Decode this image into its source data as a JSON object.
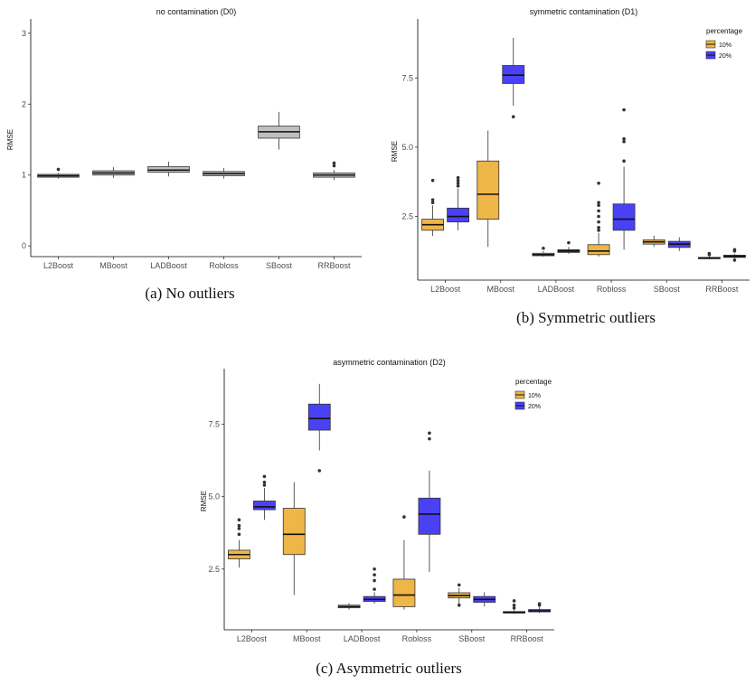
{
  "chart_data": [
    {
      "id": "a",
      "type": "boxplot",
      "title": "no contamination (D0)",
      "ylabel": "RMSE",
      "caption": "(a)  No outliers",
      "ylim": [
        -0.15,
        3.15
      ],
      "yticks": [
        {
          "v": 0,
          "label": "0"
        },
        {
          "v": 1,
          "label": "1"
        },
        {
          "v": 2,
          "label": "2"
        },
        {
          "v": 3,
          "label": "3"
        }
      ],
      "categories": [
        "L2Boost",
        "MBoost",
        "LADBoost",
        "Robloss",
        "SBoost",
        "RRBoost"
      ],
      "legend": null,
      "series": [
        {
          "color": "#bebebe",
          "boxes": [
            {
              "lw": 0.95,
              "q1": 0.97,
              "med": 0.99,
              "q3": 1.01,
              "hw": 1.03,
              "out": [
                1.08
              ]
            },
            {
              "lw": 0.96,
              "q1": 1.0,
              "med": 1.03,
              "q3": 1.06,
              "hw": 1.11,
              "out": []
            },
            {
              "lw": 0.98,
              "q1": 1.04,
              "med": 1.07,
              "q3": 1.12,
              "hw": 1.19,
              "out": []
            },
            {
              "lw": 0.95,
              "q1": 0.99,
              "med": 1.02,
              "q3": 1.05,
              "hw": 1.1,
              "out": []
            },
            {
              "lw": 1.36,
              "q1": 1.52,
              "med": 1.61,
              "q3": 1.69,
              "hw": 1.89,
              "out": []
            },
            {
              "lw": 0.93,
              "q1": 0.97,
              "med": 1.0,
              "q3": 1.03,
              "hw": 1.07,
              "out": [
                1.13,
                1.17
              ]
            }
          ]
        }
      ]
    },
    {
      "id": "b",
      "type": "boxplot",
      "title": "symmetric contamination (D1)",
      "ylabel": "RMSE",
      "caption": "(b)  Symmetric outliers",
      "ylim": [
        0.2,
        9.5
      ],
      "yticks": [
        {
          "v": 2.5,
          "label": "2.5"
        },
        {
          "v": 5.0,
          "label": "5.0"
        },
        {
          "v": 7.5,
          "label": "7.5"
        }
      ],
      "categories": [
        "L2Boost",
        "MBoost",
        "LADBoost",
        "Robloss",
        "SBoost",
        "RRBoost"
      ],
      "legend": {
        "title": "percentage",
        "placement": "top-right"
      },
      "series": [
        {
          "name": "10%",
          "color": "#eeb547",
          "boxes": [
            {
              "lw": 1.8,
              "q1": 2.0,
              "med": 2.2,
              "q3": 2.4,
              "hw": 2.9,
              "out": [
                3.0,
                3.1,
                3.8
              ]
            },
            {
              "lw": 1.4,
              "q1": 2.4,
              "med": 3.3,
              "q3": 4.5,
              "hw": 5.6,
              "out": []
            },
            {
              "lw": 1.05,
              "q1": 1.08,
              "med": 1.12,
              "q3": 1.17,
              "hw": 1.25,
              "out": [
                1.35
              ]
            },
            {
              "lw": 1.05,
              "q1": 1.12,
              "med": 1.25,
              "q3": 1.48,
              "hw": 1.9,
              "out": [
                2.0,
                2.1,
                2.3,
                2.5,
                2.7,
                2.9,
                3.0,
                3.7
              ]
            },
            {
              "lw": 1.4,
              "q1": 1.5,
              "med": 1.58,
              "q3": 1.65,
              "hw": 1.8,
              "out": []
            },
            {
              "lw": 0.95,
              "q1": 0.98,
              "med": 1.0,
              "q3": 1.02,
              "hw": 1.06,
              "out": [
                1.12,
                1.16
              ]
            }
          ]
        },
        {
          "name": "20%",
          "color": "#4a41f5",
          "boxes": [
            {
              "lw": 2.0,
              "q1": 2.3,
              "med": 2.5,
              "q3": 2.8,
              "hw": 3.5,
              "out": [
                3.6,
                3.7,
                3.8,
                3.9
              ]
            },
            {
              "lw": 6.5,
              "q1": 7.3,
              "med": 7.6,
              "q3": 7.95,
              "hw": 8.95,
              "out": [
                6.1
              ]
            },
            {
              "lw": 1.15,
              "q1": 1.2,
              "med": 1.25,
              "q3": 1.3,
              "hw": 1.4,
              "out": [
                1.55
              ]
            },
            {
              "lw": 1.3,
              "q1": 2.0,
              "med": 2.4,
              "q3": 2.95,
              "hw": 4.3,
              "out": [
                4.5,
                5.2,
                5.3,
                6.35
              ]
            },
            {
              "lw": 1.25,
              "q1": 1.38,
              "med": 1.5,
              "q3": 1.6,
              "hw": 1.75,
              "out": []
            },
            {
              "lw": 0.98,
              "q1": 1.02,
              "med": 1.06,
              "q3": 1.1,
              "hw": 1.15,
              "out": [
                0.92,
                1.25,
                1.3
              ]
            }
          ]
        }
      ]
    },
    {
      "id": "c",
      "type": "boxplot",
      "title": "asymmetric contamination (D2)",
      "ylabel": "RMSE",
      "caption": "(c)  Asymmetric outliers",
      "ylim": [
        0.4,
        9.3
      ],
      "yticks": [
        {
          "v": 2.5,
          "label": "2.5"
        },
        {
          "v": 5.0,
          "label": "5.0"
        },
        {
          "v": 7.5,
          "label": "7.5"
        }
      ],
      "categories": [
        "L2Boost",
        "MBoost",
        "LADBoost",
        "Robloss",
        "SBoost",
        "RRBoost"
      ],
      "legend": {
        "title": "percentage",
        "placement": "top-right"
      },
      "series": [
        {
          "name": "10%",
          "color": "#eeb547",
          "boxes": [
            {
              "lw": 2.55,
              "q1": 2.85,
              "med": 3.0,
              "q3": 3.15,
              "hw": 3.5,
              "out": [
                3.7,
                3.9,
                4.0,
                4.2
              ]
            },
            {
              "lw": 1.6,
              "q1": 3.0,
              "med": 3.7,
              "q3": 4.6,
              "hw": 5.5,
              "out": []
            },
            {
              "lw": 1.1,
              "q1": 1.16,
              "med": 1.2,
              "q3": 1.25,
              "hw": 1.32,
              "out": []
            },
            {
              "lw": 1.1,
              "q1": 1.2,
              "med": 1.6,
              "q3": 2.15,
              "hw": 3.5,
              "out": [
                4.3
              ]
            },
            {
              "lw": 1.3,
              "q1": 1.5,
              "med": 1.58,
              "q3": 1.68,
              "hw": 1.85,
              "out": [
                1.95,
                1.25
              ]
            },
            {
              "lw": 0.95,
              "q1": 0.98,
              "med": 1.0,
              "q3": 1.03,
              "hw": 1.08,
              "out": [
                1.15,
                1.25,
                1.4
              ]
            }
          ]
        },
        {
          "name": "20%",
          "color": "#4a41f5",
          "boxes": [
            {
              "lw": 4.2,
              "q1": 4.55,
              "med": 4.65,
              "q3": 4.85,
              "hw": 5.3,
              "out": [
                5.4,
                5.5,
                5.7
              ]
            },
            {
              "lw": 6.6,
              "q1": 7.3,
              "med": 7.7,
              "q3": 8.2,
              "hw": 8.9,
              "out": [
                5.9
              ]
            },
            {
              "lw": 1.3,
              "q1": 1.38,
              "med": 1.45,
              "q3": 1.55,
              "hw": 1.7,
              "out": [
                1.8,
                2.1,
                2.3,
                2.5
              ]
            },
            {
              "lw": 2.4,
              "q1": 3.7,
              "med": 4.4,
              "q3": 4.95,
              "hw": 5.9,
              "out": [
                7.0,
                7.2
              ]
            },
            {
              "lw": 1.2,
              "q1": 1.35,
              "med": 1.45,
              "q3": 1.55,
              "hw": 1.7,
              "out": []
            },
            {
              "lw": 0.98,
              "q1": 1.02,
              "med": 1.05,
              "q3": 1.1,
              "hw": 1.18,
              "out": [
                1.25,
                1.3
              ]
            }
          ]
        }
      ]
    }
  ]
}
